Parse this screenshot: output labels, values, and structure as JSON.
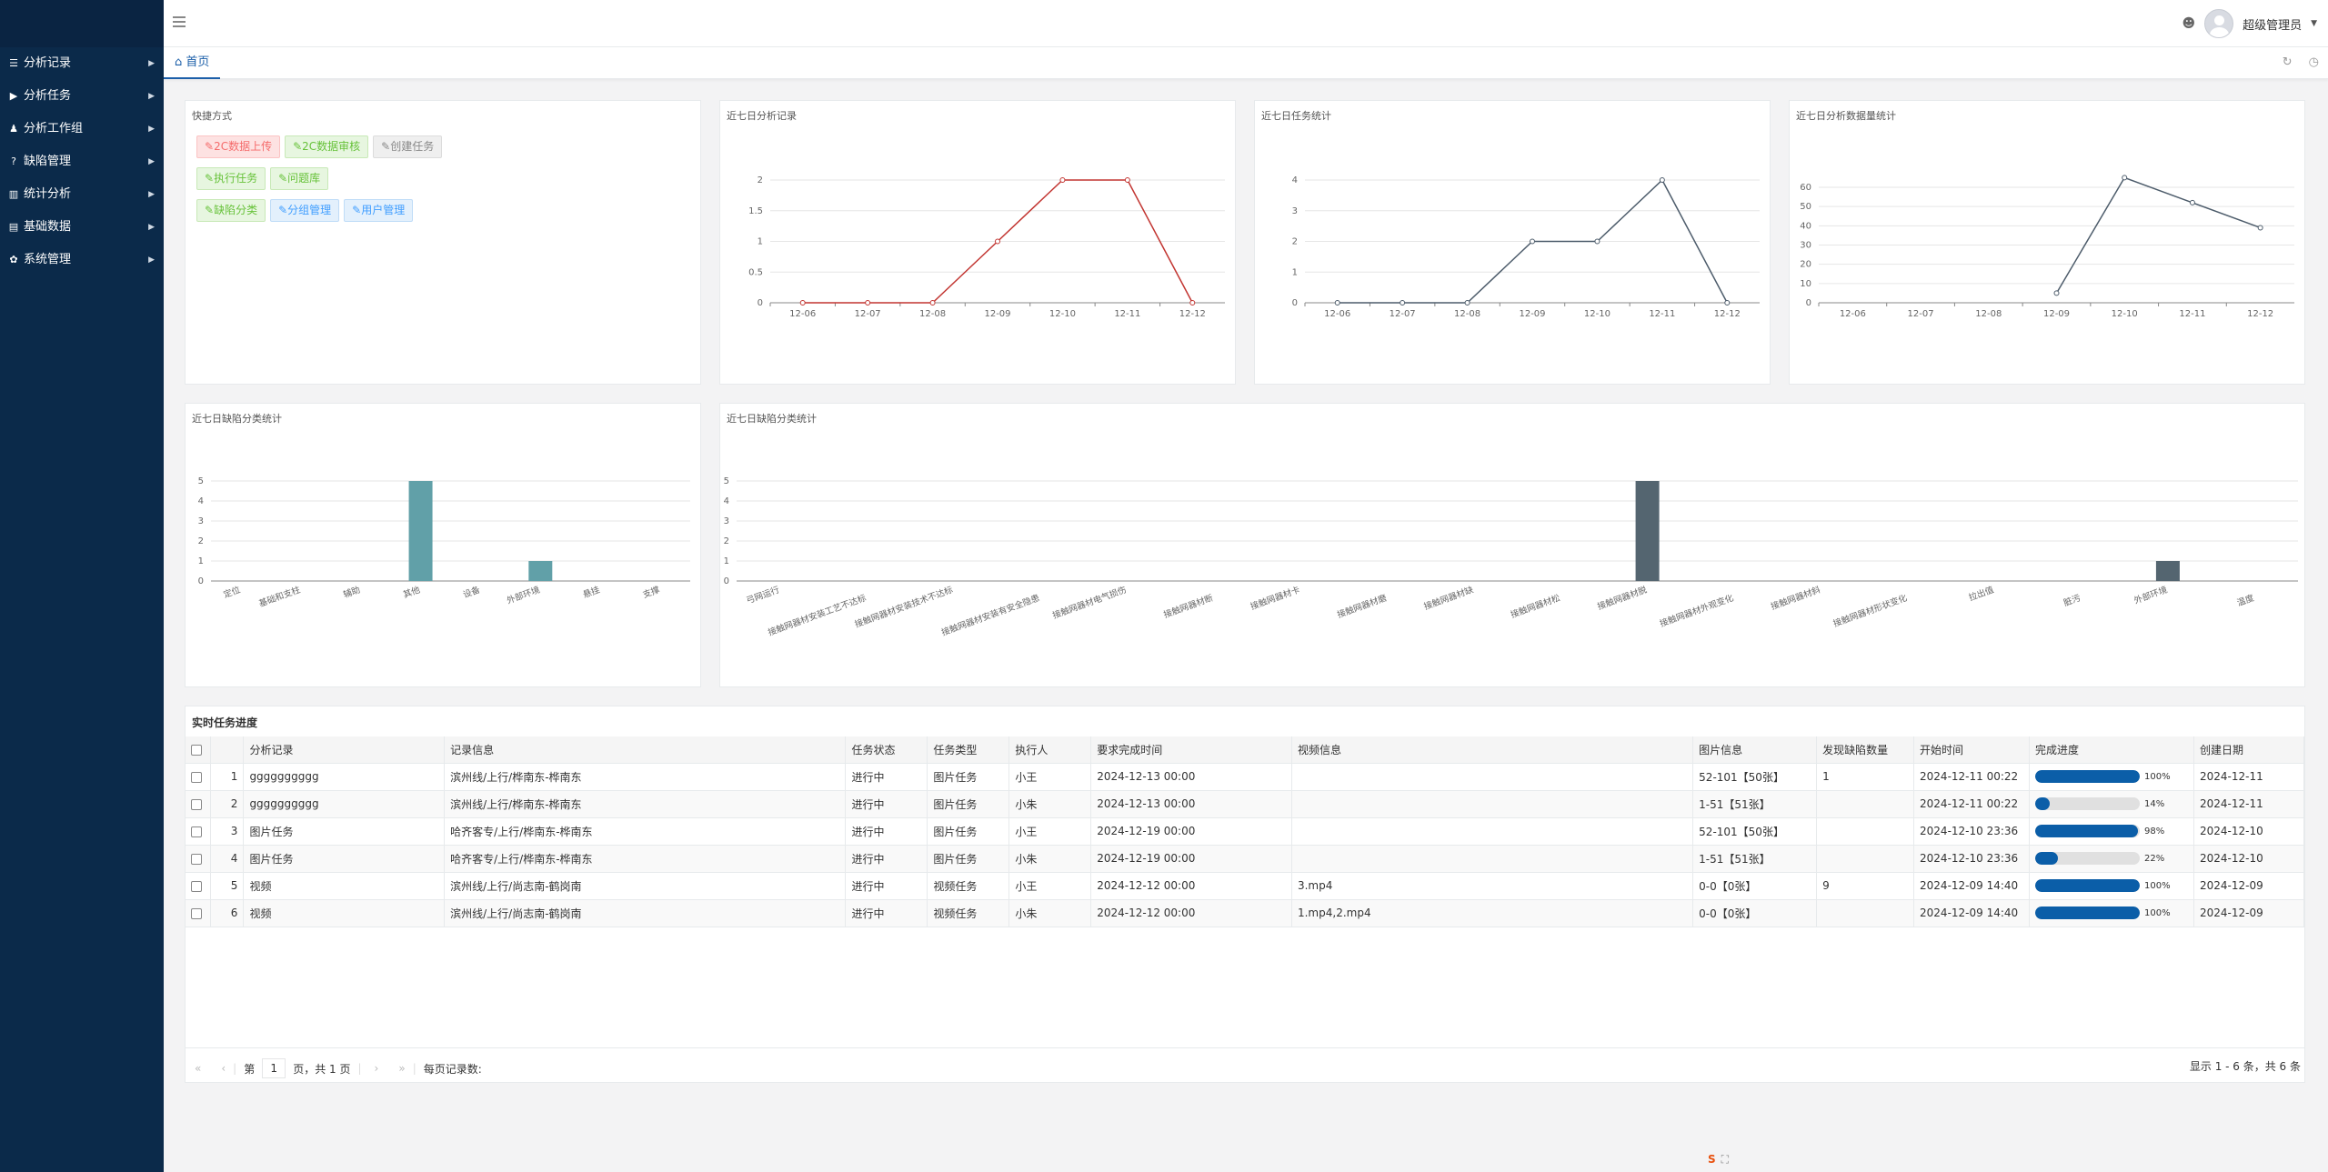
{
  "sidebar": {
    "items": [
      {
        "icon": "list-icon",
        "label": "分析记录"
      },
      {
        "icon": "play-icon",
        "label": "分析任务"
      },
      {
        "icon": "group-icon",
        "label": "分析工作组"
      },
      {
        "icon": "question-circle-icon",
        "label": "缺陷管理"
      },
      {
        "icon": "bar-chart-icon",
        "label": "统计分析"
      },
      {
        "icon": "database-icon",
        "label": "基础数据"
      },
      {
        "icon": "gear-icon",
        "label": "系统管理"
      }
    ]
  },
  "header": {
    "user_name": "超级管理员"
  },
  "tabs": {
    "home": "首页"
  },
  "quick": {
    "title": "快捷方式",
    "buttons": [
      {
        "label": "2C数据上传",
        "color": "red"
      },
      {
        "label": "2C数据审核",
        "color": "green"
      },
      {
        "label": "创建任务",
        "color": "gray"
      },
      {
        "label": "执行任务",
        "color": "green"
      },
      {
        "label": "问题库",
        "color": "green"
      },
      {
        "label": "缺陷分类",
        "color": "green"
      },
      {
        "label": "分组管理",
        "color": "blue"
      },
      {
        "label": "用户管理",
        "color": "blue"
      }
    ]
  },
  "chart_data": [
    {
      "type": "line",
      "title": "近七日分析记录",
      "x": [
        "12-06",
        "12-07",
        "12-08",
        "12-09",
        "12-10",
        "12-11",
        "12-12"
      ],
      "series": [
        {
          "values": [
            0,
            0,
            0,
            1,
            2,
            2,
            0
          ],
          "color": "#c23531"
        }
      ],
      "ylim": [
        0,
        2
      ],
      "yticks": [
        "0",
        "0.5",
        "1",
        "1.5",
        "2"
      ]
    },
    {
      "type": "line",
      "title": "近七日任务统计",
      "x": [
        "12-06",
        "12-07",
        "12-08",
        "12-09",
        "12-10",
        "12-11",
        "12-12"
      ],
      "series": [
        {
          "values": [
            0,
            0,
            0,
            2,
            2,
            4,
            0
          ],
          "color": "#4d5c6b"
        }
      ],
      "ylim": [
        0,
        4
      ],
      "yticks": [
        "0",
        "1",
        "2",
        "3",
        "4"
      ]
    },
    {
      "type": "line",
      "title": "近七日分析数据量统计",
      "x": [
        "12-06",
        "12-07",
        "12-08",
        "12-09",
        "12-10",
        "12-11",
        "12-12"
      ],
      "series": [
        {
          "values": [
            null,
            null,
            null,
            5,
            65,
            52,
            39
          ],
          "color": "#4d5c6b"
        }
      ],
      "ylim": [
        0,
        60
      ],
      "yticks": [
        "0",
        "10",
        "20",
        "30",
        "40",
        "50",
        "60"
      ]
    },
    {
      "type": "bar",
      "title": "近七日缺陷分类统计",
      "categories": [
        "定位",
        "基础和支柱",
        "辅助",
        "其他",
        "设备",
        "外部环境",
        "悬挂",
        "支撑"
      ],
      "values": [
        0,
        0,
        0,
        5,
        0,
        1,
        0,
        0
      ],
      "color": "#61a0a8",
      "ylim": [
        0,
        5
      ],
      "yticks": [
        "0",
        "1",
        "2",
        "3",
        "4",
        "5"
      ]
    },
    {
      "type": "bar",
      "title": "近七日缺陷分类统计",
      "categories": [
        "弓网运行",
        "接触网器材安装工艺不达标",
        "接触网器材安装技术不达标",
        "接触网器材安装有安全隐患",
        "接触网器材电气损伤",
        "接触网器材断",
        "接触网器材卡",
        "接触网器材磨",
        "接触网器材缺",
        "接触网器材松",
        "接触网器材脱",
        "接触网器材外观变化",
        "接触网器材斜",
        "接触网器材形状变化",
        "拉出值",
        "脏污",
        "外部环境",
        "温度"
      ],
      "values": [
        0,
        0,
        0,
        0,
        0,
        0,
        0,
        0,
        0,
        0,
        5,
        0,
        0,
        0,
        0,
        0,
        1,
        0
      ],
      "color": "#546570",
      "ylim": [
        0,
        5
      ],
      "yticks": [
        "0",
        "1",
        "2",
        "3",
        "4",
        "5"
      ]
    }
  ],
  "tasks": {
    "title": "实时任务进度",
    "headers": [
      "分析记录",
      "记录信息",
      "任务状态",
      "任务类型",
      "执行人",
      "要求完成时间",
      "视频信息",
      "图片信息",
      "发现缺陷数量",
      "开始时间",
      "完成进度",
      "创建日期"
    ],
    "rows": [
      {
        "no": "1",
        "rec": "gggggggggg",
        "info": "滨州线/上行/桦南东-桦南东",
        "status": "进行中",
        "type": "图片任务",
        "user": "小王",
        "due": "2024-12-13 00:00",
        "video": "",
        "img": "52-101【50张】",
        "defects": "1",
        "start": "2024-12-11 00:22",
        "progress": 100,
        "pct": "100%",
        "created": "2024-12-11"
      },
      {
        "no": "2",
        "rec": "gggggggggg",
        "info": "滨州线/上行/桦南东-桦南东",
        "status": "进行中",
        "type": "图片任务",
        "user": "小朱",
        "due": "2024-12-13 00:00",
        "video": "",
        "img": "1-51【51张】",
        "defects": "",
        "start": "2024-12-11 00:22",
        "progress": 14,
        "pct": "14%",
        "created": "2024-12-11"
      },
      {
        "no": "3",
        "rec": "图片任务",
        "info": "哈齐客专/上行/桦南东-桦南东",
        "status": "进行中",
        "type": "图片任务",
        "user": "小王",
        "due": "2024-12-19 00:00",
        "video": "",
        "img": "52-101【50张】",
        "defects": "",
        "start": "2024-12-10 23:36",
        "progress": 98,
        "pct": "98%",
        "created": "2024-12-10"
      },
      {
        "no": "4",
        "rec": "图片任务",
        "info": "哈齐客专/上行/桦南东-桦南东",
        "status": "进行中",
        "type": "图片任务",
        "user": "小朱",
        "due": "2024-12-19 00:00",
        "video": "",
        "img": "1-51【51张】",
        "defects": "",
        "start": "2024-12-10 23:36",
        "progress": 22,
        "pct": "22%",
        "created": "2024-12-10"
      },
      {
        "no": "5",
        "rec": "视频",
        "info": "滨州线/上行/尚志南-鹤岗南",
        "status": "进行中",
        "type": "视频任务",
        "user": "小王",
        "due": "2024-12-12 00:00",
        "video": "3.mp4",
        "img": "0-0【0张】",
        "defects": "9",
        "start": "2024-12-09 14:40",
        "progress": 100,
        "pct": "100%",
        "created": "2024-12-09"
      },
      {
        "no": "6",
        "rec": "视频",
        "info": "滨州线/上行/尚志南-鹤岗南",
        "status": "进行中",
        "type": "视频任务",
        "user": "小朱",
        "due": "2024-12-12 00:00",
        "video": "1.mp4,2.mp4",
        "img": "0-0【0张】",
        "defects": "",
        "start": "2024-12-09 14:40",
        "progress": 100,
        "pct": "100%",
        "created": "2024-12-09"
      }
    ]
  },
  "pager": {
    "page_prefix": "第",
    "page": "1",
    "page_suffix": "页，共 1 页",
    "per_page_label": "每页记录数:",
    "summary": "显示 1 - 6 条，共 6 条"
  }
}
